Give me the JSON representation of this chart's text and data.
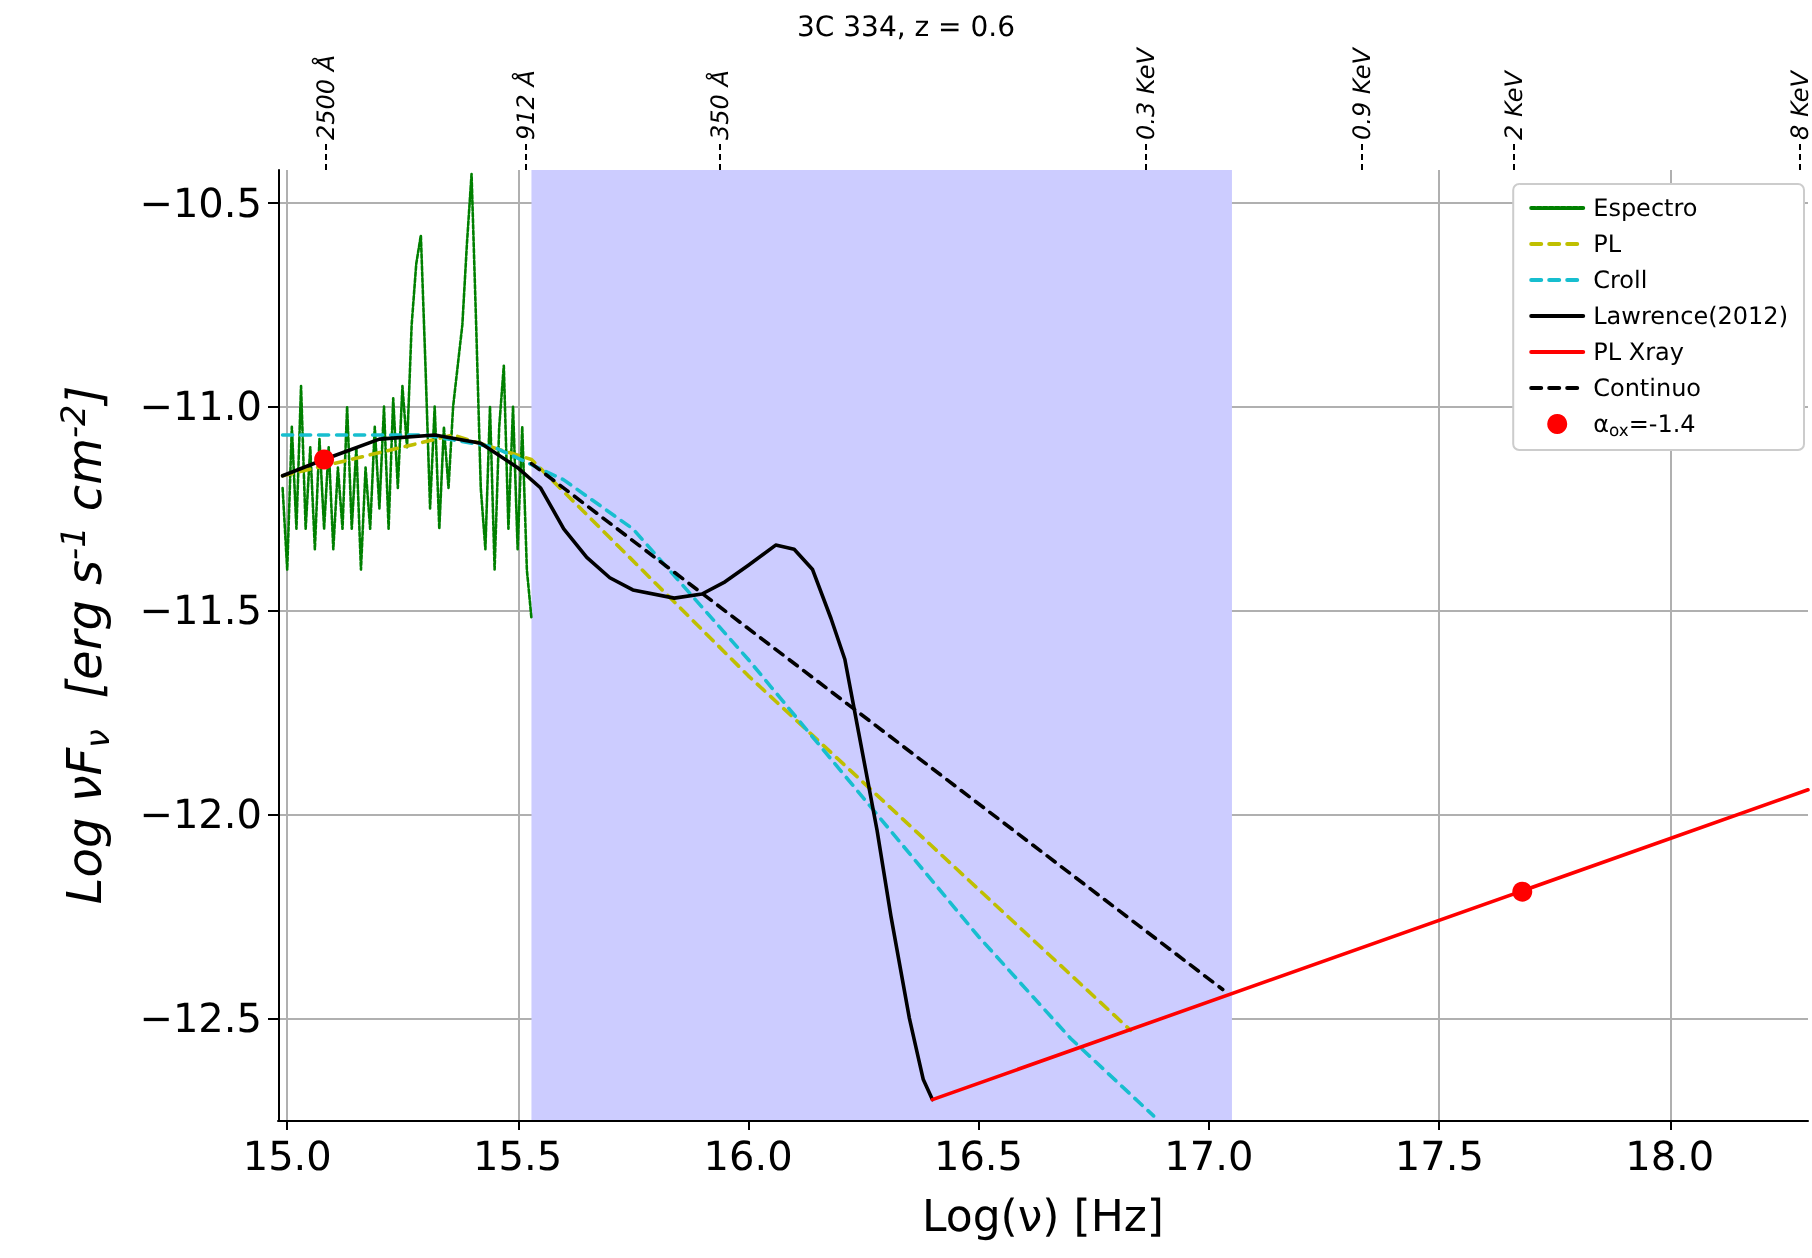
{
  "chart_data": {
    "type": "line",
    "title": "3C 334, z = 0.6",
    "xlabel": "Log(ν) [Hz]",
    "ylabel": "Log νF$_{ν}$  [erg s$^{-1}$ cm$^{-2}$]",
    "xlim": [
      14.98,
      18.3
    ],
    "ylim": [
      -12.75,
      -10.42
    ],
    "xticks": [
      {
        "value": 15,
        "label": "15.0"
      },
      {
        "value": 15.5,
        "label": "15.5"
      },
      {
        "value": 16,
        "label": "16.0"
      },
      {
        "value": 16.5,
        "label": "16.5"
      },
      {
        "value": 17,
        "label": "17.0"
      },
      {
        "value": 17.5,
        "label": "17.5"
      },
      {
        "value": 18,
        "label": "18.0"
      }
    ],
    "yticks": [
      {
        "value": -10.5,
        "label": "−10.5"
      },
      {
        "value": -11,
        "label": "−11.0"
      },
      {
        "value": -11.5,
        "label": "−11.5"
      },
      {
        "value": -12,
        "label": "−12.0"
      },
      {
        "value": -12.5,
        "label": "−12.5"
      }
    ],
    "annotations": [
      "2500 Å",
      "912 Å",
      "350 Å",
      "0.3 KeV",
      "0.9 KeV",
      "2 KeV",
      "8 KeV"
    ],
    "grid": true,
    "legend": "top right",
    "bands": [
      {
        "axis": "x",
        "from": 15.53,
        "to": 17.05,
        "color": "#ccccff"
      }
    ],
    "series": [
      {
        "name": "Espectro",
        "color": "#008000",
        "line_style": "dashed",
        "x": [
          14.99,
          15.0,
          15.01,
          15.02,
          15.03,
          15.04,
          15.05,
          15.06,
          15.07,
          15.08,
          15.09,
          15.1,
          15.11,
          15.12,
          15.13,
          15.14,
          15.15,
          15.16,
          15.17,
          15.18,
          15.19,
          15.2,
          15.21,
          15.22,
          15.23,
          15.24,
          15.25,
          15.26,
          15.27,
          15.28,
          15.29,
          15.3,
          15.31,
          15.32,
          15.33,
          15.34,
          15.35,
          15.36,
          15.37,
          15.38,
          15.39,
          15.4,
          15.41,
          15.42,
          15.43,
          15.44,
          15.45,
          15.46,
          15.47,
          15.48,
          15.49,
          15.5,
          15.51,
          15.52,
          15.53
        ],
        "values": [
          -11.2,
          -11.4,
          -11.05,
          -11.3,
          -10.95,
          -11.3,
          -11.1,
          -11.35,
          -11.08,
          -11.3,
          -11.1,
          -11.35,
          -11.15,
          -11.3,
          -11.0,
          -11.3,
          -11.1,
          -11.4,
          -11.15,
          -11.3,
          -11.05,
          -11.25,
          -11.0,
          -11.3,
          -10.98,
          -11.2,
          -10.95,
          -11.1,
          -10.8,
          -10.65,
          -10.58,
          -10.9,
          -11.25,
          -11.0,
          -11.3,
          -11.05,
          -11.2,
          -11.0,
          -10.9,
          -10.8,
          -10.6,
          -10.43,
          -10.8,
          -11.2,
          -11.35,
          -11.0,
          -11.4,
          -11.05,
          -10.9,
          -11.3,
          -11.0,
          -11.35,
          -11.05,
          -11.4,
          -11.52
        ]
      },
      {
        "name": "PL",
        "color": "#bfbf00",
        "line_style": "dashed",
        "x": [
          14.99,
          15.36,
          15.53,
          16.0,
          16.83
        ],
        "values": [
          -11.17,
          -11.07,
          -11.13,
          -11.66,
          -12.53
        ]
      },
      {
        "name": "Croll",
        "color": "#17becf",
        "line_style": "dashed",
        "x": [
          14.99,
          15.3,
          15.45,
          15.6,
          15.75,
          16.0,
          16.25,
          16.5,
          16.7,
          16.88
        ],
        "values": [
          -11.07,
          -11.07,
          -11.1,
          -11.18,
          -11.3,
          -11.62,
          -11.96,
          -12.3,
          -12.55,
          -12.74
        ]
      },
      {
        "name": "Lawrence(2012)",
        "color": "#000000",
        "line_style": "solid",
        "x": [
          14.99,
          15.08,
          15.2,
          15.32,
          15.42,
          15.5,
          15.55,
          15.6,
          15.65,
          15.7,
          15.75,
          15.84,
          15.9,
          15.95,
          16.0,
          16.06,
          16.1,
          16.14,
          16.18,
          16.21,
          16.24,
          16.28,
          16.31,
          16.35,
          16.37,
          16.38,
          16.4
        ],
        "values": [
          -11.17,
          -11.13,
          -11.08,
          -11.07,
          -11.09,
          -11.15,
          -11.2,
          -11.3,
          -11.37,
          -11.42,
          -11.45,
          -11.47,
          -11.46,
          -11.43,
          -11.39,
          -11.34,
          -11.35,
          -11.4,
          -11.52,
          -11.62,
          -11.8,
          -12.04,
          -12.25,
          -12.5,
          -12.6,
          -12.65,
          -12.7
        ]
      },
      {
        "name": "PL Xray",
        "color": "#ff0000",
        "line_style": "solid",
        "x": [
          16.4,
          18.3
        ],
        "values": [
          -12.7,
          -11.94
        ]
      },
      {
        "name": "Continuo",
        "color": "#000000",
        "line_style": "dashed",
        "x": [
          15.53,
          17.03
        ],
        "values": [
          -11.14,
          -12.43
        ]
      },
      {
        "name": "α$_{ox}$=-1.4",
        "type": "scatter",
        "marker": "circle",
        "color": "#ff0000",
        "x": [
          15.08,
          17.68
        ],
        "values": [
          -11.13,
          -12.19
        ]
      }
    ]
  }
}
